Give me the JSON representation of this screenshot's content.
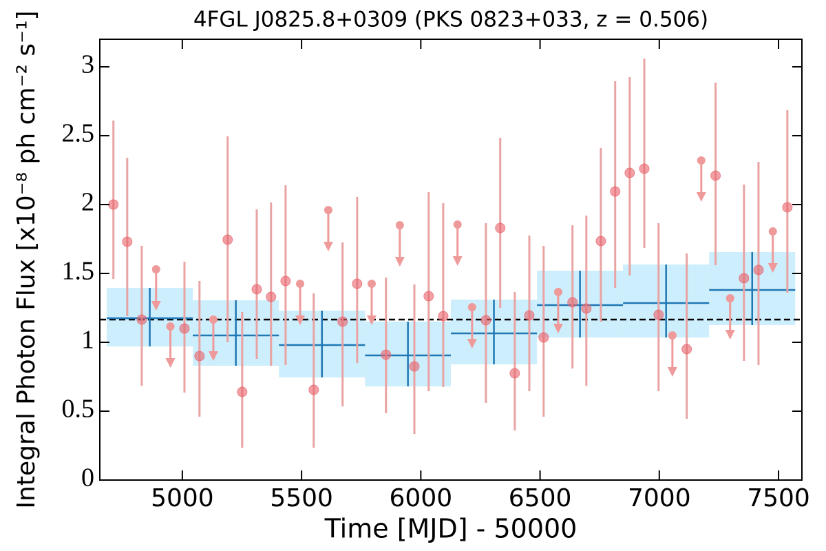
{
  "chart_data": {
    "type": "lightcurve",
    "title": "4FGL J0825.8+0309 (PKS 0823+033, z = 0.506)",
    "x_label": "Time [MJD] - 50000",
    "y_label": "Integral Photon Flux [x10⁻⁸ ph cm⁻² s⁻¹]",
    "xlim": [
      4654,
      7598
    ],
    "ylim": [
      0,
      3.2
    ],
    "xticks": [
      5000,
      5500,
      6000,
      6500,
      7000,
      7500
    ],
    "yticks": [
      0,
      0.5,
      1,
      1.5,
      2,
      2.5,
      3
    ],
    "detections": {
      "color": "#e8636b",
      "error_color": "#e9a3a3",
      "x": [
        4711,
        4769,
        4830,
        5009,
        5072,
        5190,
        5251,
        5312,
        5372,
        5433,
        5551,
        5672,
        5733,
        5854,
        5973,
        6033,
        6094,
        6273,
        6333,
        6394,
        6455,
        6515,
        6636,
        6694,
        6755,
        6815,
        6876,
        6937,
        6997,
        7115,
        7236,
        7355,
        7416,
        7537
      ],
      "values": [
        2.0,
        1.73,
        1.165,
        1.1,
        0.9,
        1.745,
        0.64,
        1.385,
        1.33,
        1.445,
        0.655,
        1.15,
        1.425,
        0.91,
        0.825,
        1.335,
        1.19,
        1.16,
        1.83,
        0.775,
        1.195,
        1.035,
        1.29,
        1.245,
        1.735,
        2.095,
        2.23,
        2.26,
        1.2,
        0.95,
        2.21,
        1.465,
        1.525,
        1.98
      ],
      "lower": [
        1.46,
        1.19,
        0.685,
        0.635,
        0.46,
        1.0,
        0.235,
        0.88,
        0.83,
        0.835,
        0.235,
        0.535,
        0.85,
        0.485,
        0.335,
        0.645,
        0.675,
        0.56,
        1.25,
        0.36,
        0.645,
        0.46,
        0.81,
        0.685,
        1.15,
        1.395,
        1.485,
        1.685,
        0.645,
        0.445,
        1.56,
        0.865,
        0.835,
        1.36
      ],
      "upper": [
        2.61,
        2.34,
        1.7,
        1.585,
        1.445,
        2.495,
        1.22,
        1.965,
        2.015,
        2.14,
        1.355,
        1.725,
        2.055,
        1.47,
        1.42,
        2.09,
        2.01,
        1.865,
        2.485,
        1.365,
        1.775,
        1.7,
        1.85,
        1.92,
        2.41,
        2.895,
        2.925,
        3.06,
        1.865,
        1.645,
        2.885,
        2.145,
        2.31,
        2.685
      ]
    },
    "upper_limits": {
      "color": "#ef9a9a",
      "x": [
        4890,
        4950,
        5130,
        5494,
        5612,
        5794,
        5912,
        6154,
        6215,
        6576,
        7055,
        7176,
        7297,
        7476
      ],
      "values": [
        1.53,
        1.115,
        1.165,
        1.425,
        1.96,
        1.425,
        1.85,
        1.855,
        1.255,
        1.365,
        1.05,
        2.32,
        1.32,
        1.805
      ]
    },
    "bins": {
      "line_color": "#1f77b4",
      "band_color": "#cdeefc",
      "edges": [
        4683,
        5044,
        5405,
        5766,
        6126,
        6487,
        6848,
        7209,
        7570
      ],
      "values": [
        1.175,
        1.05,
        0.98,
        0.905,
        1.065,
        1.27,
        1.285,
        1.38
      ],
      "lower": [
        0.97,
        0.83,
        0.745,
        0.68,
        0.84,
        1.035,
        1.035,
        1.125
      ],
      "upper": [
        1.395,
        1.305,
        1.23,
        1.15,
        1.31,
        1.52,
        1.565,
        1.655
      ]
    },
    "mean": 1.165
  }
}
